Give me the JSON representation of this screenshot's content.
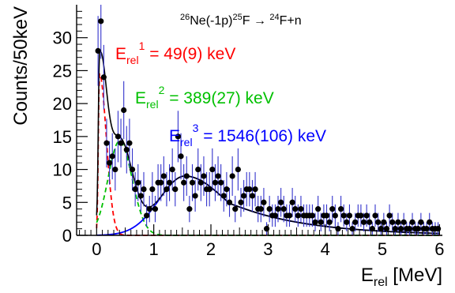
{
  "chart_data": {
    "type": "scatter",
    "reaction": {
      "parts": [
        {
          "t": "26",
          "sup": true
        },
        {
          "t": "Ne(-1p)",
          "sup": false
        },
        {
          "t": "25",
          "sup": true
        },
        {
          "t": "F  ",
          "sup": false
        },
        {
          "t": "→",
          "sup": false
        },
        {
          "t": "   ",
          "sup": false
        },
        {
          "t": "24",
          "sup": true
        },
        {
          "t": "F+n",
          "sup": false
        }
      ]
    },
    "xlabel": {
      "main": "E",
      "sub": "rel",
      "unit": " [MeV]"
    },
    "ylabel": "Counts/50keV",
    "xlim": [
      -0.35,
      6.05
    ],
    "ylim": [
      0,
      35
    ],
    "xticks": [
      0,
      1,
      2,
      3,
      4,
      5,
      6
    ],
    "yticks": [
      0,
      5,
      10,
      15,
      20,
      25,
      30
    ],
    "annotations": [
      {
        "main": "E",
        "sub": "rel",
        "sup": "1",
        "value": " = 49(9) keV",
        "color": "#ff0000"
      },
      {
        "main": "E",
        "sub": "rel",
        "sup": "2",
        "value": " = 389(27) keV",
        "color": "#00c000"
      },
      {
        "main": "E",
        "sub": "rel",
        "sup": "3",
        "value": " = 1546(106) keV",
        "color": "#0000ff"
      }
    ],
    "colors": {
      "data": "#000000",
      "errorbar": "#3333cc",
      "state1": "#ff0000",
      "state2": "#00c000",
      "state3": "#0000ff",
      "total": "#000000"
    },
    "components": [
      {
        "name": "state1",
        "type": "peak",
        "center": 0.05,
        "amplitude": 24.5,
        "width_left": 0.02,
        "width_right": 0.12,
        "style": "dashed"
      },
      {
        "name": "state2",
        "type": "peak",
        "center": 0.4,
        "amplitude": 14.3,
        "width_left": 0.2,
        "width_right": 0.22,
        "style": "dashed"
      },
      {
        "name": "state3",
        "type": "resonance",
        "center": 1.546,
        "amplitude": 9.0,
        "width_left": 0.45,
        "width_right": 0.7,
        "tail": 1.3,
        "style": "solid"
      }
    ],
    "points": [
      {
        "x": 0.025,
        "y": 28.0,
        "err": 5.3
      },
      {
        "x": 0.075,
        "y": 32.5,
        "err": 5.7
      },
      {
        "x": 0.125,
        "y": 24.0,
        "err": 4.9
      },
      {
        "x": 0.175,
        "y": 14.0,
        "err": 3.7
      },
      {
        "x": 0.225,
        "y": 11.0,
        "err": 3.3
      },
      {
        "x": 0.275,
        "y": 12.0,
        "err": 3.5
      },
      {
        "x": 0.325,
        "y": 10.0,
        "err": 3.2
      },
      {
        "x": 0.375,
        "y": 15.0,
        "err": 3.9
      },
      {
        "x": 0.425,
        "y": 14.0,
        "err": 3.7
      },
      {
        "x": 0.475,
        "y": 19.0,
        "err": 4.4
      },
      {
        "x": 0.525,
        "y": 13.0,
        "err": 3.6
      },
      {
        "x": 0.575,
        "y": 14.0,
        "err": 3.7
      },
      {
        "x": 0.625,
        "y": 10.0,
        "err": 3.2
      },
      {
        "x": 0.675,
        "y": 7.0,
        "err": 2.6
      },
      {
        "x": 0.725,
        "y": 8.0,
        "err": 2.8
      },
      {
        "x": 0.775,
        "y": 6.0,
        "err": 2.4
      },
      {
        "x": 0.825,
        "y": 7.0,
        "err": 2.6
      },
      {
        "x": 0.875,
        "y": 3.0,
        "err": 1.7
      },
      {
        "x": 0.925,
        "y": 4.0,
        "err": 2.0
      },
      {
        "x": 0.975,
        "y": 7.0,
        "err": 2.6
      },
      {
        "x": 1.025,
        "y": 4.0,
        "err": 2.0
      },
      {
        "x": 1.075,
        "y": 8.0,
        "err": 2.8
      },
      {
        "x": 1.125,
        "y": 8.0,
        "err": 2.8
      },
      {
        "x": 1.175,
        "y": 9.0,
        "err": 3.0
      },
      {
        "x": 1.225,
        "y": 7.0,
        "err": 2.6
      },
      {
        "x": 1.275,
        "y": 8.0,
        "err": 2.8
      },
      {
        "x": 1.325,
        "y": 10.0,
        "err": 3.2
      },
      {
        "x": 1.375,
        "y": 7.0,
        "err": 2.6
      },
      {
        "x": 1.425,
        "y": 15.0,
        "err": 3.9
      },
      {
        "x": 1.475,
        "y": 12.0,
        "err": 3.5
      },
      {
        "x": 1.525,
        "y": 8.0,
        "err": 2.8
      },
      {
        "x": 1.575,
        "y": 9.0,
        "err": 3.0
      },
      {
        "x": 1.625,
        "y": 4.0,
        "err": 2.0
      },
      {
        "x": 1.675,
        "y": 8.0,
        "err": 2.8
      },
      {
        "x": 1.725,
        "y": 6.0,
        "err": 2.4
      },
      {
        "x": 1.775,
        "y": 10.0,
        "err": 3.2
      },
      {
        "x": 1.825,
        "y": 8.0,
        "err": 2.8
      },
      {
        "x": 1.875,
        "y": 9.0,
        "err": 3.0
      },
      {
        "x": 1.925,
        "y": 7.0,
        "err": 2.6
      },
      {
        "x": 1.975,
        "y": 7.0,
        "err": 2.6
      },
      {
        "x": 2.025,
        "y": 10.0,
        "err": 3.2
      },
      {
        "x": 2.075,
        "y": 8.0,
        "err": 2.8
      },
      {
        "x": 2.125,
        "y": 9.0,
        "err": 3.0
      },
      {
        "x": 2.175,
        "y": 8.0,
        "err": 2.8
      },
      {
        "x": 2.225,
        "y": 6.0,
        "err": 2.4
      },
      {
        "x": 2.275,
        "y": 7.0,
        "err": 2.6
      },
      {
        "x": 2.325,
        "y": 5.0,
        "err": 2.2
      },
      {
        "x": 2.375,
        "y": 9.0,
        "err": 3.0
      },
      {
        "x": 2.425,
        "y": 4.0,
        "err": 2.0
      },
      {
        "x": 2.475,
        "y": 10.0,
        "err": 3.2
      },
      {
        "x": 2.525,
        "y": 5.0,
        "err": 2.2
      },
      {
        "x": 2.575,
        "y": 6.0,
        "err": 2.4
      },
      {
        "x": 2.625,
        "y": 7.0,
        "err": 2.6
      },
      {
        "x": 2.675,
        "y": 7.0,
        "err": 2.6
      },
      {
        "x": 2.725,
        "y": 6.0,
        "err": 2.4
      },
      {
        "x": 2.775,
        "y": 7.0,
        "err": 2.6
      },
      {
        "x": 2.825,
        "y": 4.0,
        "err": 2.0
      },
      {
        "x": 2.875,
        "y": 4.0,
        "err": 2.0
      },
      {
        "x": 2.925,
        "y": 5.0,
        "err": 2.2
      },
      {
        "x": 2.975,
        "y": 1.0,
        "err": 1.0
      },
      {
        "x": 3.025,
        "y": 4.0,
        "err": 2.0
      },
      {
        "x": 3.075,
        "y": 3.0,
        "err": 1.7
      },
      {
        "x": 3.125,
        "y": 3.0,
        "err": 1.7
      },
      {
        "x": 3.175,
        "y": 4.0,
        "err": 2.0
      },
      {
        "x": 3.225,
        "y": 5.0,
        "err": 2.2
      },
      {
        "x": 3.275,
        "y": 4.0,
        "err": 2.0
      },
      {
        "x": 3.325,
        "y": 3.0,
        "err": 1.7
      },
      {
        "x": 3.375,
        "y": 3.0,
        "err": 1.7
      },
      {
        "x": 3.425,
        "y": 5.0,
        "err": 2.2
      },
      {
        "x": 3.475,
        "y": 4.0,
        "err": 2.0
      },
      {
        "x": 3.525,
        "y": 3.0,
        "err": 1.7
      },
      {
        "x": 3.575,
        "y": 4.0,
        "err": 2.0
      },
      {
        "x": 3.625,
        "y": 3.0,
        "err": 1.7
      },
      {
        "x": 3.675,
        "y": 3.0,
        "err": 1.7
      },
      {
        "x": 3.725,
        "y": 3.0,
        "err": 1.7
      },
      {
        "x": 3.775,
        "y": 3.0,
        "err": 1.7
      },
      {
        "x": 3.825,
        "y": 2.0,
        "err": 1.4
      },
      {
        "x": 3.875,
        "y": 4.0,
        "err": 2.0
      },
      {
        "x": 3.925,
        "y": 2.0,
        "err": 1.4
      },
      {
        "x": 3.975,
        "y": 3.0,
        "err": 1.7
      },
      {
        "x": 4.025,
        "y": 3.0,
        "err": 1.7
      },
      {
        "x": 4.075,
        "y": 2.0,
        "err": 1.4
      },
      {
        "x": 4.125,
        "y": 4.0,
        "err": 2.0
      },
      {
        "x": 4.175,
        "y": 3.0,
        "err": 1.7
      },
      {
        "x": 4.225,
        "y": 1.0,
        "err": 1.0
      },
      {
        "x": 4.275,
        "y": 4.0,
        "err": 2.0
      },
      {
        "x": 4.325,
        "y": 3.0,
        "err": 1.7
      },
      {
        "x": 4.375,
        "y": 2.0,
        "err": 1.4
      },
      {
        "x": 4.425,
        "y": 3.0,
        "err": 1.7
      },
      {
        "x": 4.475,
        "y": 1.0,
        "err": 1.0
      },
      {
        "x": 4.525,
        "y": 2.0,
        "err": 1.4
      },
      {
        "x": 4.575,
        "y": 3.0,
        "err": 1.7
      },
      {
        "x": 4.625,
        "y": 3.0,
        "err": 1.7
      },
      {
        "x": 4.675,
        "y": 2.0,
        "err": 1.4
      },
      {
        "x": 4.725,
        "y": 3.0,
        "err": 1.7
      },
      {
        "x": 4.775,
        "y": 2.0,
        "err": 1.4
      },
      {
        "x": 4.825,
        "y": 1.0,
        "err": 1.0
      },
      {
        "x": 4.875,
        "y": 3.0,
        "err": 1.7
      },
      {
        "x": 4.925,
        "y": 2.0,
        "err": 1.4
      },
      {
        "x": 4.975,
        "y": 1.0,
        "err": 1.0
      },
      {
        "x": 5.025,
        "y": 2.0,
        "err": 1.4
      },
      {
        "x": 5.075,
        "y": 1.0,
        "err": 1.0
      },
      {
        "x": 5.125,
        "y": 3.0,
        "err": 1.7
      },
      {
        "x": 5.175,
        "y": 2.0,
        "err": 1.4
      },
      {
        "x": 5.225,
        "y": 1.0,
        "err": 1.0
      },
      {
        "x": 5.275,
        "y": 2.0,
        "err": 1.4
      },
      {
        "x": 5.325,
        "y": 1.0,
        "err": 1.0
      },
      {
        "x": 5.375,
        "y": 2.0,
        "err": 1.4
      },
      {
        "x": 5.425,
        "y": 1.0,
        "err": 1.0
      },
      {
        "x": 5.475,
        "y": 1.0,
        "err": 1.0
      },
      {
        "x": 5.525,
        "y": 2.0,
        "err": 1.4
      },
      {
        "x": 5.575,
        "y": 1.0,
        "err": 1.0
      },
      {
        "x": 5.625,
        "y": 1.0,
        "err": 1.0
      },
      {
        "x": 5.675,
        "y": 2.0,
        "err": 1.4
      },
      {
        "x": 5.725,
        "y": 1.0,
        "err": 1.0
      },
      {
        "x": 5.775,
        "y": 1.0,
        "err": 1.0
      },
      {
        "x": 5.825,
        "y": 2.0,
        "err": 1.4
      },
      {
        "x": 5.875,
        "y": 1.0,
        "err": 1.0
      },
      {
        "x": 5.925,
        "y": 1.0,
        "err": 1.0
      },
      {
        "x": 5.975,
        "y": 1.0,
        "err": 1.0
      }
    ]
  }
}
